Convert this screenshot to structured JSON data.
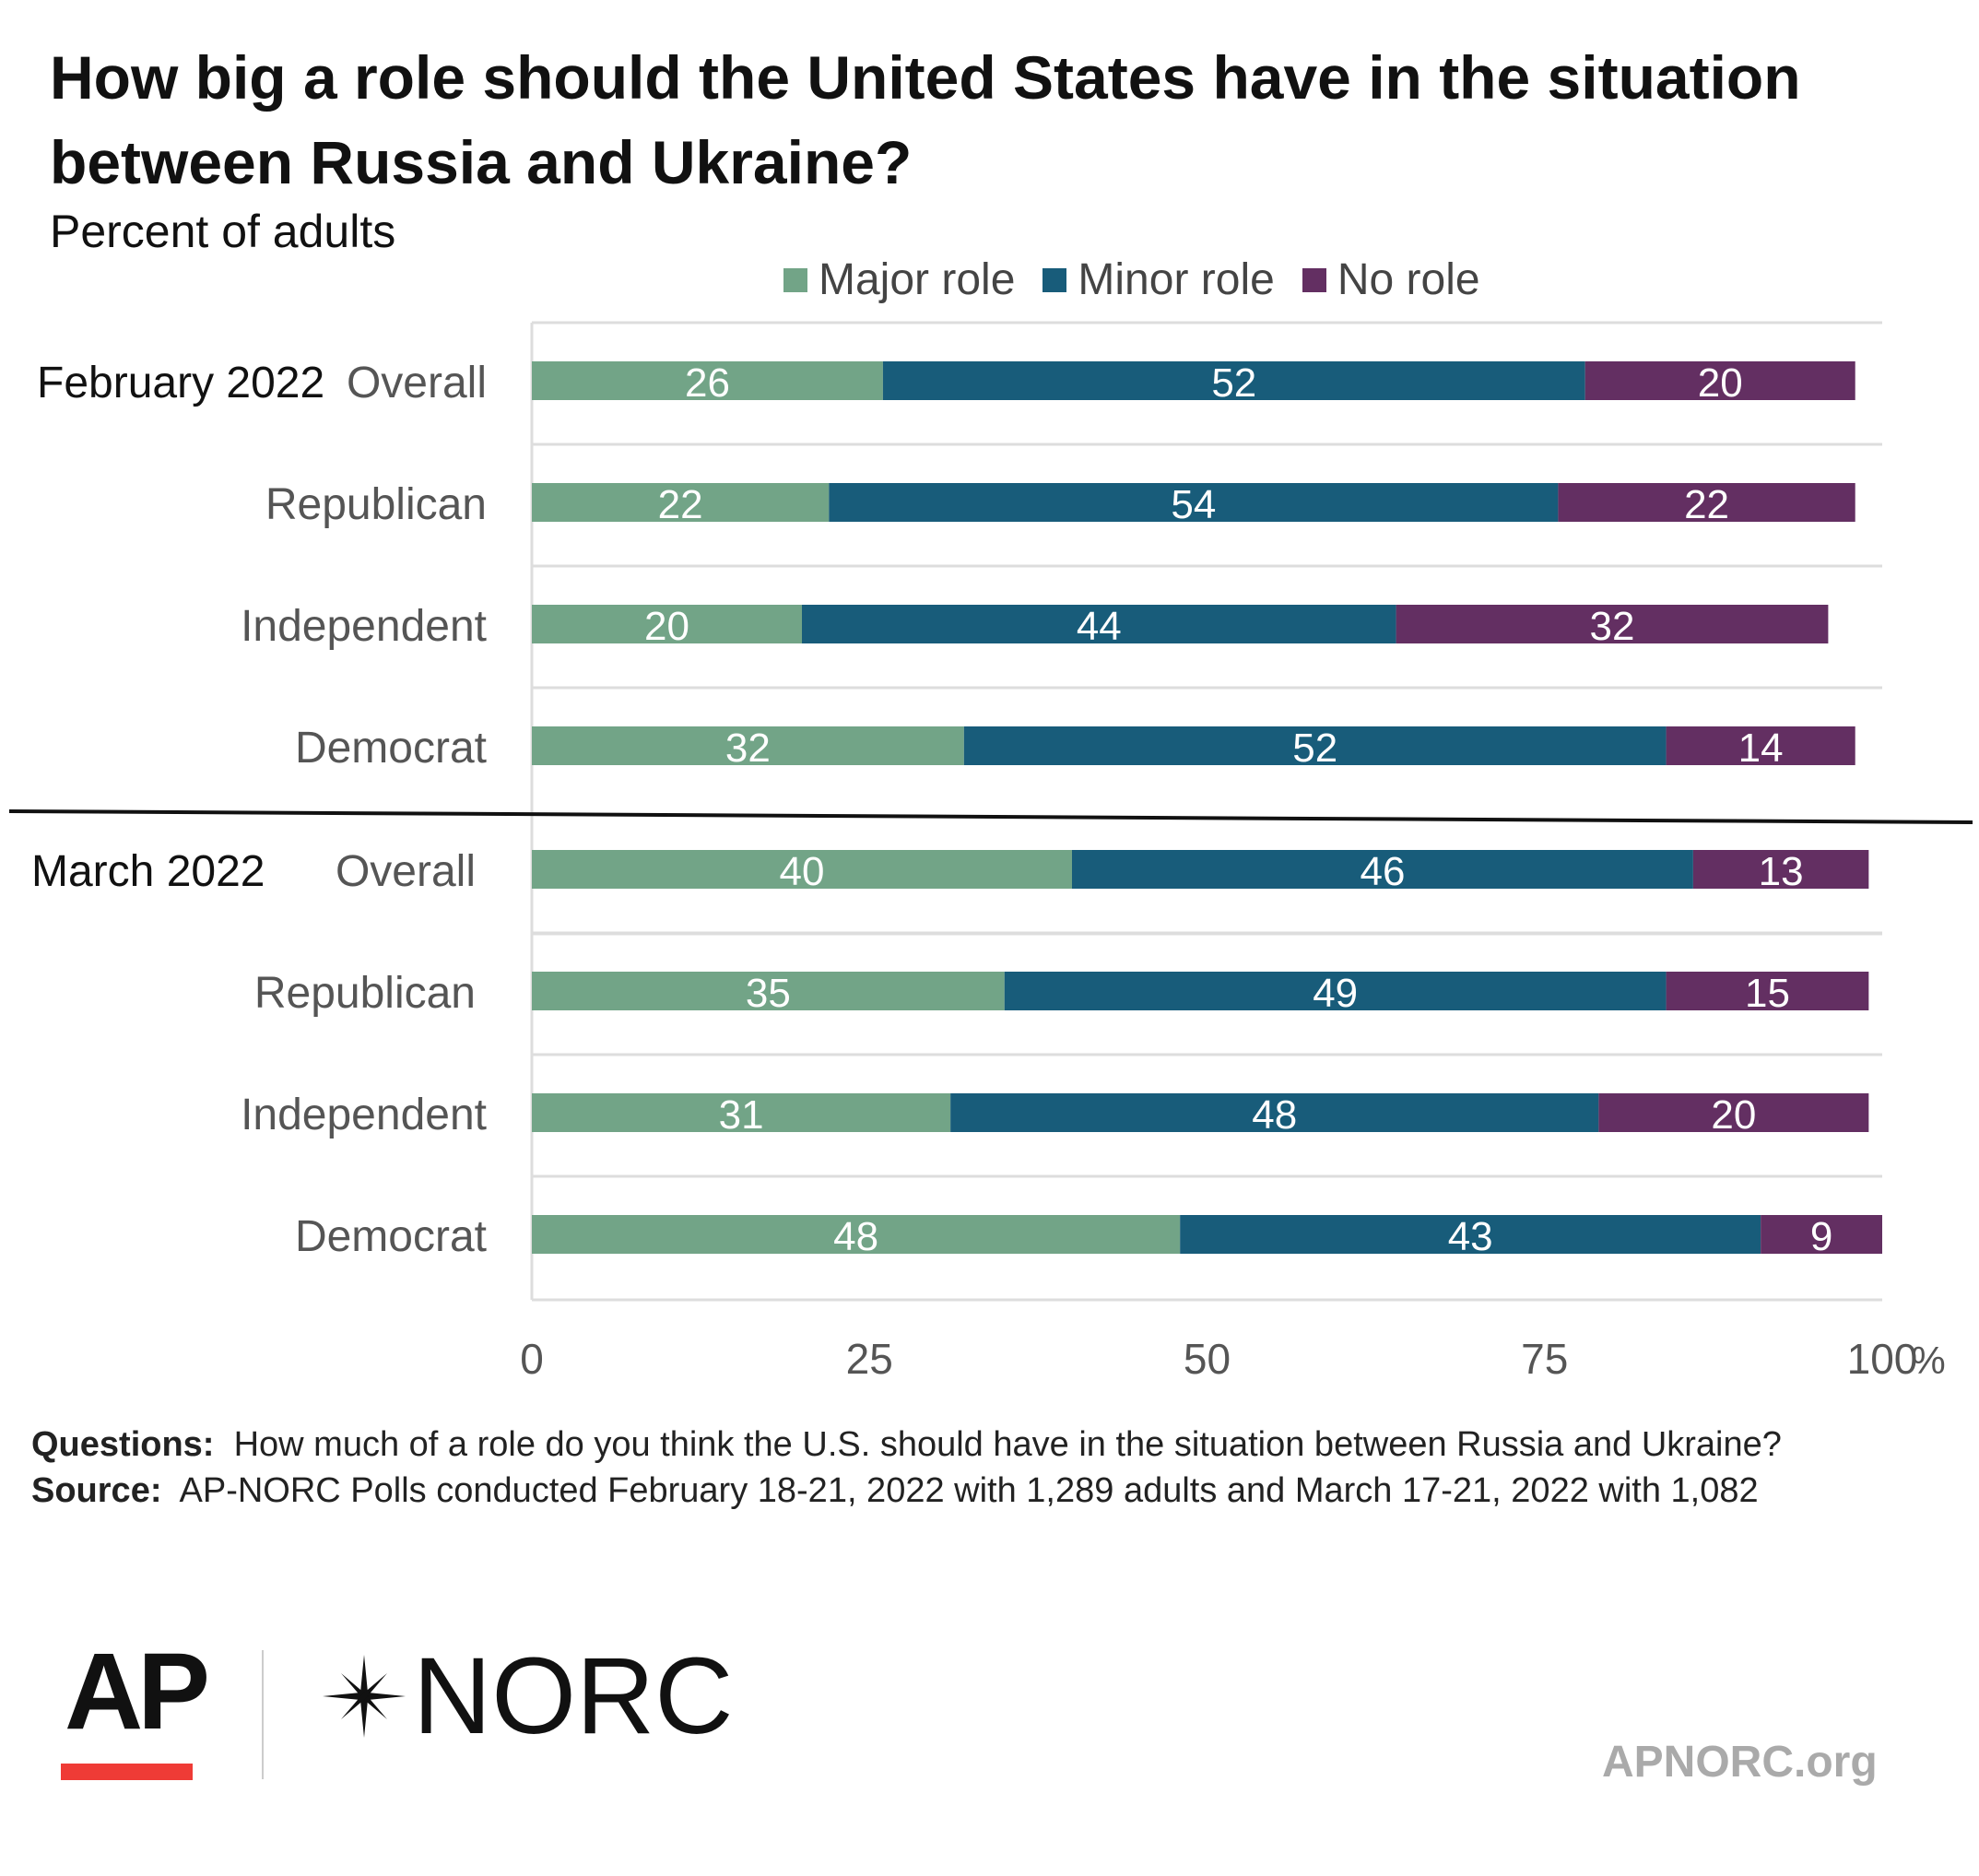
{
  "chart_data": {
    "type": "bar",
    "orientation": "horizontal",
    "stacked": true,
    "title": "How big a role should the United States have in the situation between Russia and Ukraine?",
    "subtitle": "Percent of adults",
    "x_ticks": [
      "0",
      "25",
      "50",
      "75",
      "100"
    ],
    "x_unit": "%",
    "xlim": [
      0,
      100
    ],
    "legend_position": "top",
    "series": [
      {
        "name": "Major role",
        "color": "#72a487"
      },
      {
        "name": "Minor role",
        "color": "#185c7a"
      },
      {
        "name": "No role",
        "color": "#632f62"
      }
    ],
    "groups": [
      {
        "label": "February 2022",
        "rows": [
          {
            "label": "Overall",
            "values": [
              26,
              52,
              20
            ]
          },
          {
            "label": "Republican",
            "values": [
              22,
              54,
              22
            ]
          },
          {
            "label": "Independent",
            "values": [
              20,
              44,
              32
            ]
          },
          {
            "label": "Democrat",
            "values": [
              32,
              52,
              14
            ]
          }
        ]
      },
      {
        "label": "March 2022",
        "rows": [
          {
            "label": "Overall",
            "values": [
              40,
              46,
              13
            ]
          },
          {
            "label": "Republican",
            "values": [
              35,
              49,
              15
            ]
          },
          {
            "label": "Independent",
            "values": [
              31,
              48,
              20
            ]
          },
          {
            "label": "Democrat",
            "values": [
              48,
              43,
              9
            ]
          }
        ]
      }
    ]
  },
  "footer": {
    "questions_label": "Questions:",
    "questions_text": "How much of a role do you think the U.S. should have in the situation between Russia and Ukraine?",
    "source_label": "Source:",
    "source_text": "AP-NORC Polls conducted February 18-21, 2022 with 1,289 adults and March 17-21, 2022 with 1,082"
  },
  "branding": {
    "ap_logo": "AP",
    "norc_logo": "NORC",
    "site": "APNORC.org",
    "ap_red": "#ef3b36"
  }
}
